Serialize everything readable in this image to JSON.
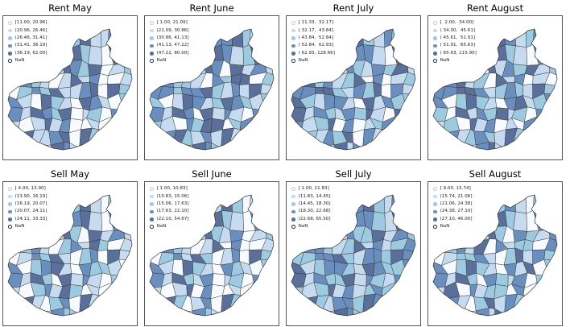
{
  "colors": {
    "classes": [
      "#f7fbff",
      "#c6dbef",
      "#9ecae1",
      "#6a8fbf",
      "#5a6f99"
    ],
    "nan": "#ffffff",
    "border": "#333333"
  },
  "maps": [
    {
      "title": "Rent May",
      "legend": [
        "[11.00, 20.96]",
        "(20.96, 26.46]",
        "(26.46, 31.41]",
        "(31.41, 36.19]",
        "(36.19, 62.00]",
        "NaN"
      ],
      "values": [
        0,
        0,
        1,
        0,
        2,
        3,
        2,
        4,
        1,
        1,
        3,
        4,
        0,
        4,
        2,
        3,
        1,
        0,
        4,
        2,
        1,
        0,
        4,
        3,
        1,
        0,
        2,
        3,
        1,
        4,
        3,
        2,
        4,
        0,
        1,
        2,
        0,
        3,
        2,
        1,
        0,
        1,
        4,
        1,
        3
      ]
    },
    {
      "title": "Rent June",
      "legend": [
        "[ 1.00, 21.09]",
        "(21.09, 30.86]",
        "(30.86, 41.13]",
        "(41.13, 47.22]",
        "(47.22, 80.00]",
        "NaN"
      ],
      "values": [
        4,
        0,
        2,
        3,
        3,
        2,
        3,
        3,
        4,
        2,
        1,
        3,
        1,
        4,
        1,
        2,
        0,
        1,
        4,
        3,
        1,
        2,
        4,
        3,
        2,
        1,
        2,
        3,
        1,
        4,
        3,
        0,
        4,
        1,
        3,
        1,
        0,
        3,
        2,
        2,
        1,
        0,
        3,
        2,
        4
      ]
    },
    {
      "title": "Rent July",
      "legend": [
        "[ 11.33,  32.17]",
        "( 32.17,  43.84]",
        "( 43.84,  52.84]",
        "( 52.84,  62.93]",
        "( 62.93, 128.66]",
        "NaN"
      ],
      "values": [
        0,
        1,
        2,
        3,
        3,
        4,
        4,
        2,
        1,
        3,
        2,
        4,
        0,
        3,
        1,
        4,
        2,
        1,
        3,
        3,
        1,
        0,
        4,
        1,
        3,
        2,
        2,
        4,
        1,
        3,
        2,
        1,
        3,
        2,
        4,
        1,
        0,
        4,
        2,
        3,
        1,
        2,
        4,
        0,
        3
      ]
    },
    {
      "title": "Rent August",
      "legend": [
        "[  2.00,  34.00]",
        "( 34.00,  45.61]",
        "( 45.61,  51.91]",
        "( 51.91,  65.63]",
        "( 65.63, 115.90]",
        "NaN"
      ],
      "values": [
        0,
        1,
        0,
        3,
        3,
        4,
        4,
        3,
        1,
        2,
        3,
        2,
        1,
        4,
        2,
        3,
        0,
        2,
        4,
        2,
        1,
        0,
        3,
        4,
        1,
        2,
        3,
        2,
        0,
        4,
        1,
        3,
        2,
        4,
        1,
        2,
        0,
        3,
        4,
        1,
        2,
        0,
        4,
        1,
        3
      ]
    },
    {
      "title": "Sell May",
      "legend": [
        "[ 4.00, 13.90]",
        "(13.90, 16.19]",
        "(16.19, 20.07]",
        "(20.07, 24.11]",
        "(24.11, 33.33]",
        "NaN"
      ],
      "values": [
        2,
        0,
        1,
        0,
        1,
        3,
        2,
        4,
        1,
        0,
        2,
        3,
        0,
        4,
        1,
        3,
        0,
        2,
        3,
        4,
        1,
        0,
        3,
        2,
        2,
        1,
        0,
        3,
        1,
        4,
        2,
        0,
        4,
        1,
        3,
        1,
        0,
        2,
        3,
        1,
        0,
        2,
        3,
        1,
        4
      ]
    },
    {
      "title": "Sell June",
      "legend": [
        "[ 1.00, 10.83]",
        "(10.83, 15.06]",
        "(15.06, 17.63]",
        "(17.63, 22.10]",
        "(22.10, 54.67]",
        "NaN"
      ],
      "values": [
        0,
        0,
        1,
        0,
        2,
        3,
        1,
        4,
        2,
        0,
        1,
        3,
        0,
        4,
        2,
        3,
        1,
        0,
        4,
        2,
        1,
        0,
        3,
        2,
        1,
        0,
        2,
        3,
        1,
        4,
        2,
        1,
        3,
        0,
        1,
        2,
        0,
        3,
        2,
        1,
        0,
        1,
        4,
        0,
        3
      ]
    },
    {
      "title": "Sell July",
      "legend": [
        "[ 1.00, 11.83]",
        "(11.83, 14.45]",
        "(14.45, 18.30]",
        "(18.30, 22.68]",
        "(22.68, 65.50]",
        "NaN"
      ],
      "values": [
        1,
        2,
        3,
        2,
        2,
        3,
        3,
        4,
        2,
        1,
        3,
        3,
        2,
        4,
        3,
        4,
        1,
        2,
        3,
        3,
        2,
        1,
        4,
        3,
        2,
        2,
        3,
        4,
        1,
        3,
        2,
        2,
        4,
        1,
        3,
        2,
        1,
        3,
        3,
        2,
        1,
        2,
        4,
        1,
        3
      ]
    },
    {
      "title": "Sell August",
      "legend": [
        "[ 9.00, 15.74]",
        "(15.74, 21.06]",
        "(21.06, 24.38]",
        "(24.38, 27.10]",
        "(27.10, 46.00]",
        "NaN"
      ],
      "values": [
        2,
        0,
        3,
        0,
        1,
        2,
        2,
        3,
        1,
        0,
        2,
        4,
        1,
        3,
        2,
        3,
        0,
        2,
        4,
        2,
        1,
        0,
        3,
        1,
        4,
        0,
        2,
        3,
        1,
        4,
        2,
        0,
        3,
        2,
        1,
        3,
        0,
        2,
        3,
        1,
        4,
        0,
        3,
        1,
        2
      ]
    }
  ]
}
